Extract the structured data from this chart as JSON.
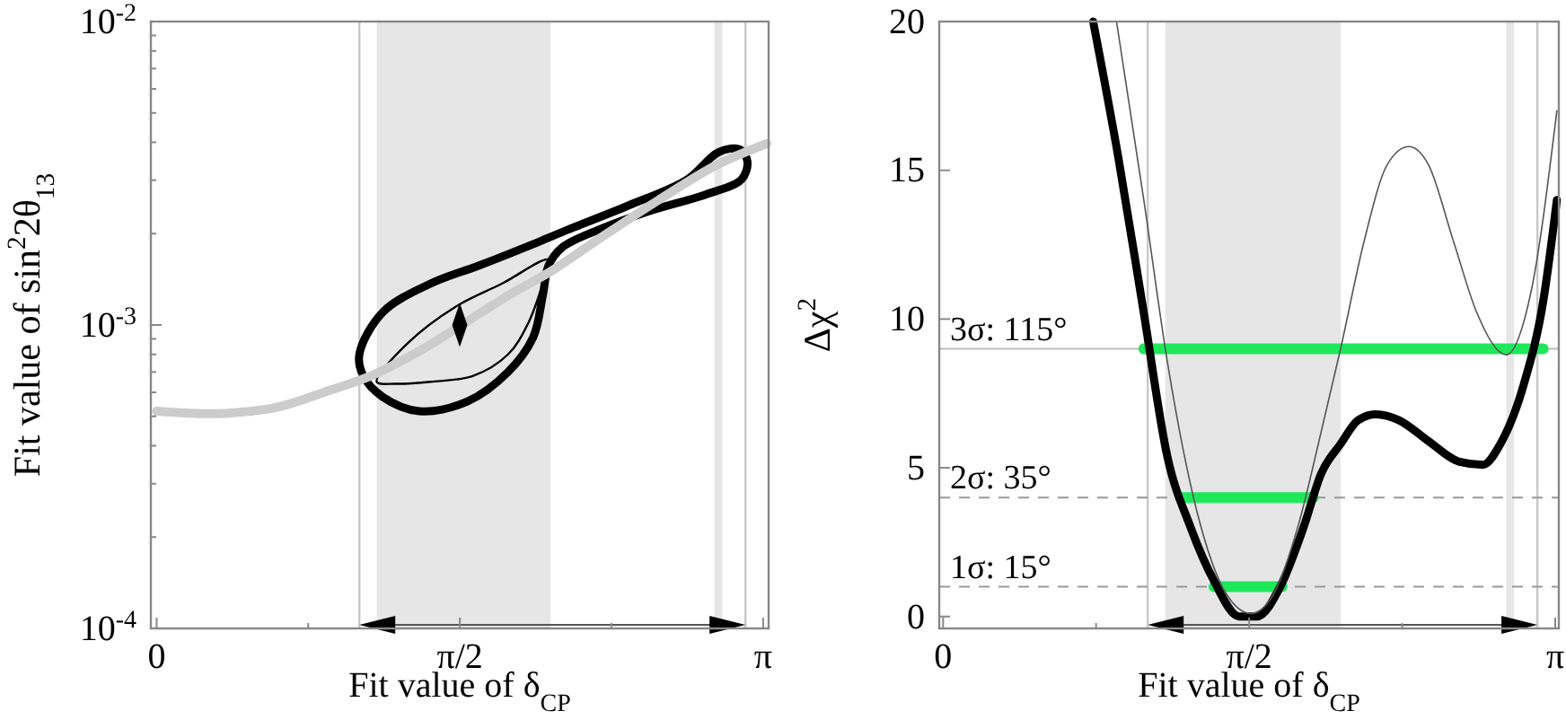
{
  "chart_data": [
    {
      "type": "line",
      "xlabel": "Fit value of δ$_{CP}$",
      "ylabel": "Fit value of sin$^{2}$2θ$_{13}$",
      "log": "y",
      "xlim": [
        -0.03,
        3.17
      ],
      "ylim": [
        0.0001,
        0.01
      ],
      "xticks": [
        0,
        {
          "value": 0.785,
          "label": null
        },
        {
          "value": 1.5708,
          "label": "π/2"
        },
        {
          "value": 2.356,
          "label": null
        },
        {
          "value": 3.1416,
          "label": "π"
        }
      ],
      "yticks": [
        {
          "value": 0.0001,
          "label": "10$^{-4}$"
        },
        {
          "value": 0.0002,
          "label": null
        },
        {
          "value": 0.0003,
          "label": null
        },
        {
          "value": 0.0004,
          "label": null
        },
        {
          "value": 0.0005,
          "label": null
        },
        {
          "value": 0.0006,
          "label": null
        },
        {
          "value": 0.0007,
          "label": null
        },
        {
          "value": 0.0008,
          "label": null
        },
        {
          "value": 0.0009,
          "label": null
        },
        {
          "value": 0.001,
          "label": "10$^{-3}$"
        },
        {
          "value": 0.002,
          "label": null
        },
        {
          "value": 0.003,
          "label": null
        },
        {
          "value": 0.004,
          "label": null
        },
        {
          "value": 0.005,
          "label": null
        },
        {
          "value": 0.006,
          "label": null
        },
        {
          "value": 0.007,
          "label": null
        },
        {
          "value": 0.008,
          "label": null
        },
        {
          "value": 0.009,
          "label": null
        },
        {
          "value": 0.01,
          "label": "10$^{-2}$"
        }
      ],
      "bands": [
        {
          "axis": "x",
          "from": 1.14,
          "to": 2.04,
          "color": "#e6e6e6"
        },
        {
          "axis": "x",
          "from": 2.89,
          "to": 2.93,
          "color": "#e6e6e6"
        }
      ],
      "ref_lines": [
        {
          "axis": "x",
          "value": 1.05,
          "color": "#c8c8c8"
        },
        {
          "axis": "x",
          "value": 3.05,
          "color": "#c8c8c8"
        }
      ],
      "series": [
        {
          "color": "#cccccc",
          "x": [
            0.0,
            0.28,
            0.59,
            0.9,
            1.11,
            1.36,
            1.58,
            1.82,
            2.04,
            2.29,
            2.6,
            2.91,
            3.16
          ],
          "values": [
            0.00052,
            0.00051,
            0.00053,
            0.00061,
            0.00068,
            0.00082,
            0.001,
            0.00125,
            0.0015,
            0.00192,
            0.00258,
            0.00339,
            0.00396
          ]
        },
        {
          "type": "scatter",
          "marker": "diamond",
          "color": "#000000",
          "x": [
            1.57
          ],
          "values": [
            0.001
          ]
        }
      ]
    },
    {
      "type": "line",
      "xlabel": "Fit value of δ$_{CP}$",
      "ylabel": "Δχ$^{2}$",
      "xlim": [
        -0.02,
        3.16
      ],
      "ylim": [
        -0.4,
        20
      ],
      "xticks": [
        0,
        {
          "value": 0.785,
          "label": null
        },
        {
          "value": 1.5708,
          "label": "π/2"
        },
        {
          "value": 2.356,
          "label": null
        },
        {
          "value": 3.1416,
          "label": "π"
        }
      ],
      "yticks": [
        0,
        5,
        10,
        15,
        20
      ],
      "bands": [
        {
          "axis": "x",
          "from": 1.14,
          "to": 2.04,
          "color": "#e6e6e6"
        },
        {
          "axis": "x",
          "from": 2.89,
          "to": 2.93,
          "color": "#e6e6e6"
        }
      ],
      "ref_lines": [
        {
          "axis": "x",
          "value": 1.05,
          "color": "#c8c8c8"
        },
        {
          "axis": "x",
          "value": 3.05,
          "color": "#c8c8c8"
        },
        {
          "axis": "y",
          "value": 9,
          "color": "#bbbbbb",
          "line_style": "solid"
        },
        {
          "axis": "y",
          "value": 4,
          "color": "#999999",
          "line_style": "dashed"
        },
        {
          "axis": "y",
          "value": 1,
          "color": "#999999",
          "line_style": "dashed"
        }
      ],
      "annotations": [
        {
          "text": "3σ: 115°",
          "y": 9
        },
        {
          "text": "2σ: 35°",
          "y": 4
        },
        {
          "text": "1σ: 15°",
          "y": 1
        }
      ],
      "series": [
        {
          "color": "#1ee85a",
          "x": [
            1.03,
            3.08,
            null,
            1.22,
            1.9,
            null,
            1.39,
            1.74
          ],
          "values": [
            9,
            9,
            null,
            4,
            4,
            null,
            1,
            1
          ]
        },
        {
          "color": "#000000",
          "x": [
            0.77,
            0.9,
            1.03,
            1.15,
            1.27,
            1.39,
            1.52,
            1.61,
            1.73,
            1.85,
            1.94,
            2.04,
            2.13,
            2.22,
            2.34,
            2.49,
            2.65,
            2.77,
            2.86,
            2.98,
            3.08,
            3.15
          ],
          "values": [
            20,
            15.4,
            10.2,
            5.4,
            3.0,
            1.2,
            0.0,
            0.0,
            1.0,
            3.0,
            4.8,
            5.8,
            6.6,
            6.8,
            6.6,
            5.9,
            5.2,
            5.1,
            5.8,
            7.8,
            10.6,
            14.0
          ]
        },
        {
          "color": "#555555",
          "x": [
            0.89,
            1.03,
            1.15,
            1.3,
            1.45,
            1.58,
            1.7,
            1.82,
            1.94,
            2.04,
            2.16,
            2.28,
            2.39,
            2.49,
            2.62,
            2.74,
            2.89,
            3.02,
            3.15
          ],
          "values": [
            20,
            14.0,
            8.6,
            3.6,
            0.8,
            0.1,
            0.8,
            3.0,
            6.2,
            9.0,
            12.6,
            15.2,
            15.8,
            15.2,
            12.6,
            10.2,
            8.8,
            11.0,
            17.0
          ]
        }
      ]
    }
  ]
}
